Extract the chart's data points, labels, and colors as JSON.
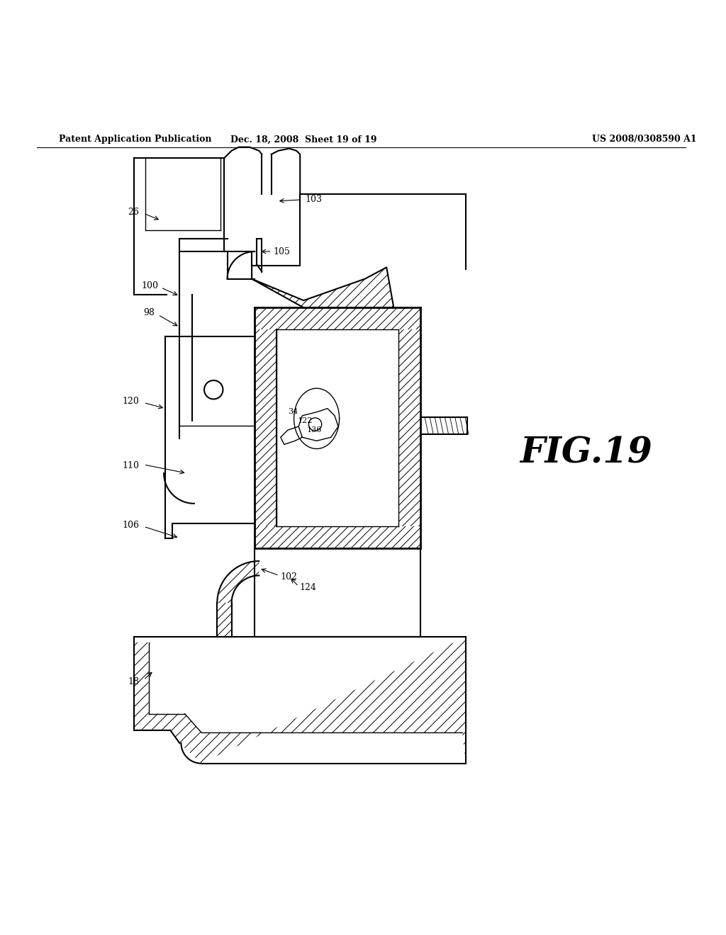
{
  "bg_color": "#ffffff",
  "header_left": "Patent Application Publication",
  "header_mid": "Dec. 18, 2008  Sheet 19 of 19",
  "header_right": "US 2008/0308590 A1",
  "fig_label": "FIG.19"
}
